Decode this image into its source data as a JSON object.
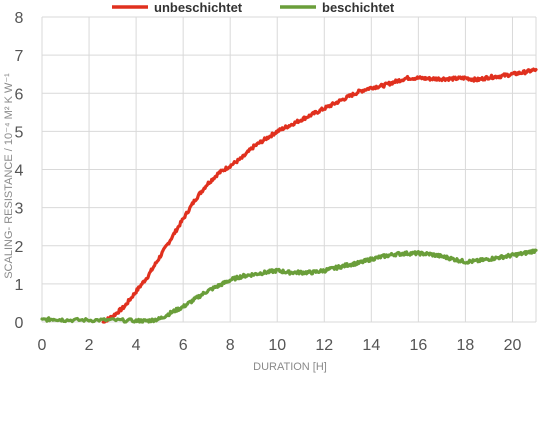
{
  "chart_data": {
    "type": "line",
    "title": "",
    "xlabel": "DURATION  [H]",
    "ylabel": "SCALING- RESISTANCE / 10⁻⁴ M² K W⁻¹",
    "xlim": [
      0,
      21
    ],
    "ylim": [
      0,
      8
    ],
    "x_ticks": [
      "0",
      "2",
      "4",
      "6",
      "8",
      "10",
      "12",
      "14",
      "16",
      "18",
      "20"
    ],
    "y_ticks": [
      "0",
      "1",
      "2",
      "3",
      "4",
      "5",
      "6",
      "7",
      "8"
    ],
    "grid": true,
    "legend_position": "top",
    "series": [
      {
        "name": "unbeschichtet",
        "color": "#e0301e",
        "points": [
          [
            2.6,
            0.0
          ],
          [
            3.0,
            0.15
          ],
          [
            3.5,
            0.4
          ],
          [
            4.0,
            0.8
          ],
          [
            4.5,
            1.2
          ],
          [
            5.0,
            1.7
          ],
          [
            5.5,
            2.2
          ],
          [
            6.0,
            2.7
          ],
          [
            6.5,
            3.2
          ],
          [
            7.0,
            3.6
          ],
          [
            7.5,
            3.9
          ],
          [
            8.0,
            4.1
          ],
          [
            8.5,
            4.3
          ],
          [
            9.0,
            4.6
          ],
          [
            9.5,
            4.8
          ],
          [
            10.0,
            5.0
          ],
          [
            10.5,
            5.15
          ],
          [
            11.0,
            5.3
          ],
          [
            11.5,
            5.45
          ],
          [
            12.0,
            5.6
          ],
          [
            12.5,
            5.75
          ],
          [
            13.0,
            5.9
          ],
          [
            13.5,
            6.05
          ],
          [
            14.0,
            6.15
          ],
          [
            14.5,
            6.2
          ],
          [
            15.0,
            6.3
          ],
          [
            15.5,
            6.4
          ],
          [
            16.0,
            6.4
          ],
          [
            16.5,
            6.38
          ],
          [
            17.0,
            6.38
          ],
          [
            17.5,
            6.38
          ],
          [
            18.0,
            6.4
          ],
          [
            18.5,
            6.35
          ],
          [
            19.0,
            6.42
          ],
          [
            19.5,
            6.45
          ],
          [
            20.0,
            6.5
          ],
          [
            20.5,
            6.55
          ],
          [
            21.0,
            6.62
          ]
        ]
      },
      {
        "name": "beschichtet",
        "color": "#6a9e3a",
        "points": [
          [
            0.0,
            0.05
          ],
          [
            0.5,
            0.08
          ],
          [
            1.0,
            0.05
          ],
          [
            2.0,
            0.05
          ],
          [
            3.0,
            0.05
          ],
          [
            4.0,
            0.03
          ],
          [
            4.5,
            0.03
          ],
          [
            5.0,
            0.08
          ],
          [
            5.5,
            0.25
          ],
          [
            6.0,
            0.4
          ],
          [
            6.5,
            0.6
          ],
          [
            7.0,
            0.8
          ],
          [
            7.5,
            0.95
          ],
          [
            8.0,
            1.1
          ],
          [
            8.5,
            1.2
          ],
          [
            9.0,
            1.25
          ],
          [
            9.5,
            1.3
          ],
          [
            10.0,
            1.35
          ],
          [
            10.5,
            1.3
          ],
          [
            11.0,
            1.3
          ],
          [
            11.5,
            1.3
          ],
          [
            12.0,
            1.35
          ],
          [
            12.5,
            1.42
          ],
          [
            13.0,
            1.5
          ],
          [
            13.5,
            1.55
          ],
          [
            14.0,
            1.65
          ],
          [
            14.5,
            1.72
          ],
          [
            15.0,
            1.78
          ],
          [
            15.5,
            1.8
          ],
          [
            16.0,
            1.8
          ],
          [
            16.5,
            1.78
          ],
          [
            17.0,
            1.72
          ],
          [
            17.5,
            1.65
          ],
          [
            18.0,
            1.58
          ],
          [
            18.5,
            1.6
          ],
          [
            19.0,
            1.65
          ],
          [
            19.5,
            1.7
          ],
          [
            20.0,
            1.75
          ],
          [
            20.5,
            1.8
          ],
          [
            21.0,
            1.88
          ]
        ]
      }
    ]
  }
}
